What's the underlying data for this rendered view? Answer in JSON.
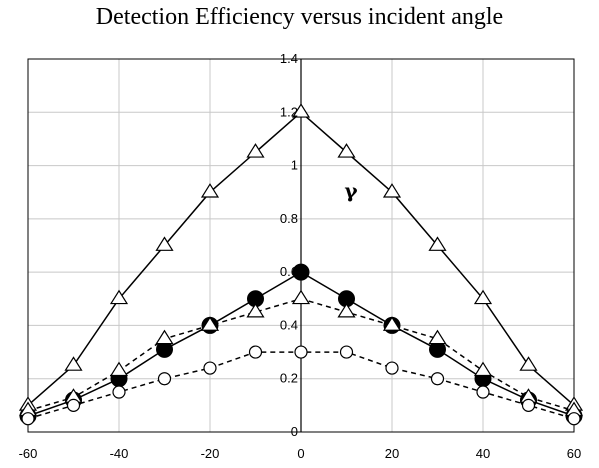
{
  "chart_data": {
    "type": "line",
    "title": "Detection Efficiency versus incident angle",
    "xlabel": "",
    "ylabel": "",
    "annotation": "γ",
    "xlim": [
      -60,
      60
    ],
    "ylim": [
      0,
      1.4
    ],
    "x_ticks": [
      -60,
      -40,
      -20,
      0,
      20,
      40,
      60
    ],
    "y_ticks": [
      0,
      0.2,
      0.4,
      0.6,
      0.8,
      1,
      1.2,
      1.4
    ],
    "grid": true,
    "legend": "none",
    "series": [
      {
        "marker": "triangle-open",
        "line": "solid",
        "x": [
          -60,
          -50,
          -40,
          -30,
          -20,
          -10,
          0,
          10,
          20,
          30,
          40,
          50,
          60
        ],
        "y": [
          0.1,
          0.25,
          0.5,
          0.7,
          0.9,
          1.05,
          1.2,
          1.05,
          0.9,
          0.7,
          0.5,
          0.25,
          0.1
        ]
      },
      {
        "marker": "circle-filled",
        "line": "solid",
        "x": [
          -60,
          -50,
          -40,
          -30,
          -20,
          -10,
          0,
          10,
          20,
          30,
          40,
          50,
          60
        ],
        "y": [
          0.06,
          0.12,
          0.2,
          0.31,
          0.4,
          0.5,
          0.6,
          0.5,
          0.4,
          0.31,
          0.2,
          0.12,
          0.06
        ]
      },
      {
        "marker": "triangle-open",
        "line": "dashed",
        "x": [
          -60,
          -50,
          -40,
          -30,
          -20,
          -10,
          0,
          10,
          20,
          30,
          40,
          50,
          60
        ],
        "y": [
          0.08,
          0.13,
          0.23,
          0.35,
          0.4,
          0.45,
          0.5,
          0.45,
          0.4,
          0.35,
          0.23,
          0.13,
          0.08
        ]
      },
      {
        "marker": "circle-open",
        "line": "dashed",
        "x": [
          -60,
          -50,
          -40,
          -30,
          -20,
          -10,
          0,
          10,
          20,
          30,
          40,
          50,
          60
        ],
        "y": [
          0.05,
          0.1,
          0.15,
          0.2,
          0.24,
          0.3,
          0.3,
          0.3,
          0.24,
          0.2,
          0.15,
          0.1,
          0.05
        ]
      }
    ]
  }
}
